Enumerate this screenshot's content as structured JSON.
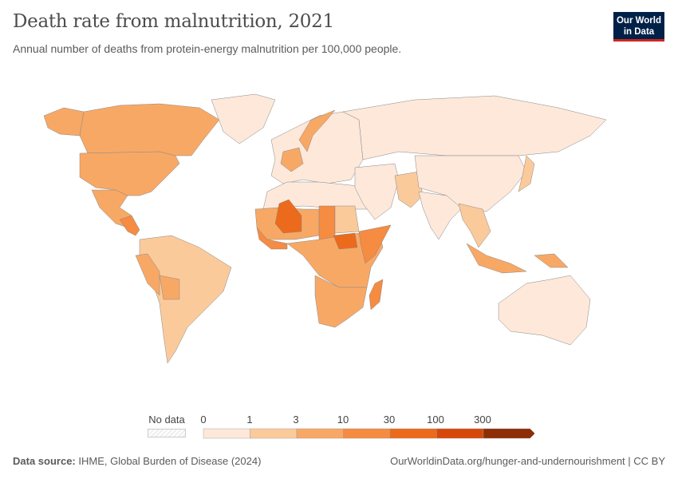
{
  "header": {
    "title": "Death rate from malnutrition, 2021",
    "subtitle": "Annual number of deaths from protein-energy malnutrition per 100,000 people.",
    "logo_line1": "Our World",
    "logo_line2": "in Data"
  },
  "legend": {
    "no_data": "No data",
    "ticks": [
      "0",
      "1",
      "3",
      "10",
      "30",
      "100",
      "300"
    ],
    "colors": [
      "#fde8da",
      "#fbca9b",
      "#f8a865",
      "#f68b42",
      "#ec6a1b",
      "#d5480a",
      "#8d2e06"
    ],
    "no_data_color": "#eeeeee"
  },
  "footer": {
    "source_label": "Data source:",
    "source": "IHME, Global Burden of Disease (2024)",
    "link": "OurWorldinData.org/hunger-and-undernourishment | CC BY"
  },
  "regions": [
    {
      "name": "Canada",
      "bin": 1
    },
    {
      "name": "Alaska",
      "bin": 2
    },
    {
      "name": "United States",
      "bin": 2
    },
    {
      "name": "Greenland",
      "bin": 0
    },
    {
      "name": "Mexico",
      "bin": 2
    },
    {
      "name": "Central America",
      "bin": 3
    },
    {
      "name": "South America",
      "bin": 1
    },
    {
      "name": "Peru",
      "bin": 2
    },
    {
      "name": "Bolivia",
      "bin": 2
    },
    {
      "name": "Europe",
      "bin": 0
    },
    {
      "name": "France",
      "bin": 2
    },
    {
      "name": "Norway",
      "bin": 2
    },
    {
      "name": "Russia",
      "bin": 0
    },
    {
      "name": "North Africa",
      "bin": 0
    },
    {
      "name": "Sahel",
      "bin": 2
    },
    {
      "name": "Mali",
      "bin": 4
    },
    {
      "name": "West Africa",
      "bin": 3
    },
    {
      "name": "Chad",
      "bin": 3
    },
    {
      "name": "Sudan",
      "bin": 1
    },
    {
      "name": "Central Africa",
      "bin": 2
    },
    {
      "name": "South Sudan",
      "bin": 4
    },
    {
      "name": "Somalia",
      "bin": 3
    },
    {
      "name": "Southern Africa",
      "bin": 2
    },
    {
      "name": "Madagascar",
      "bin": 3
    },
    {
      "name": "Middle East",
      "bin": 0
    },
    {
      "name": "Pakistan",
      "bin": 1
    },
    {
      "name": "India",
      "bin": 0
    },
    {
      "name": "China",
      "bin": 0
    },
    {
      "name": "Southeast Asia",
      "bin": 1
    },
    {
      "name": "Indonesia",
      "bin": 2
    },
    {
      "name": "Japan",
      "bin": 1
    },
    {
      "name": "Australia",
      "bin": 0
    },
    {
      "name": "Papua New Guinea",
      "bin": 2
    }
  ]
}
